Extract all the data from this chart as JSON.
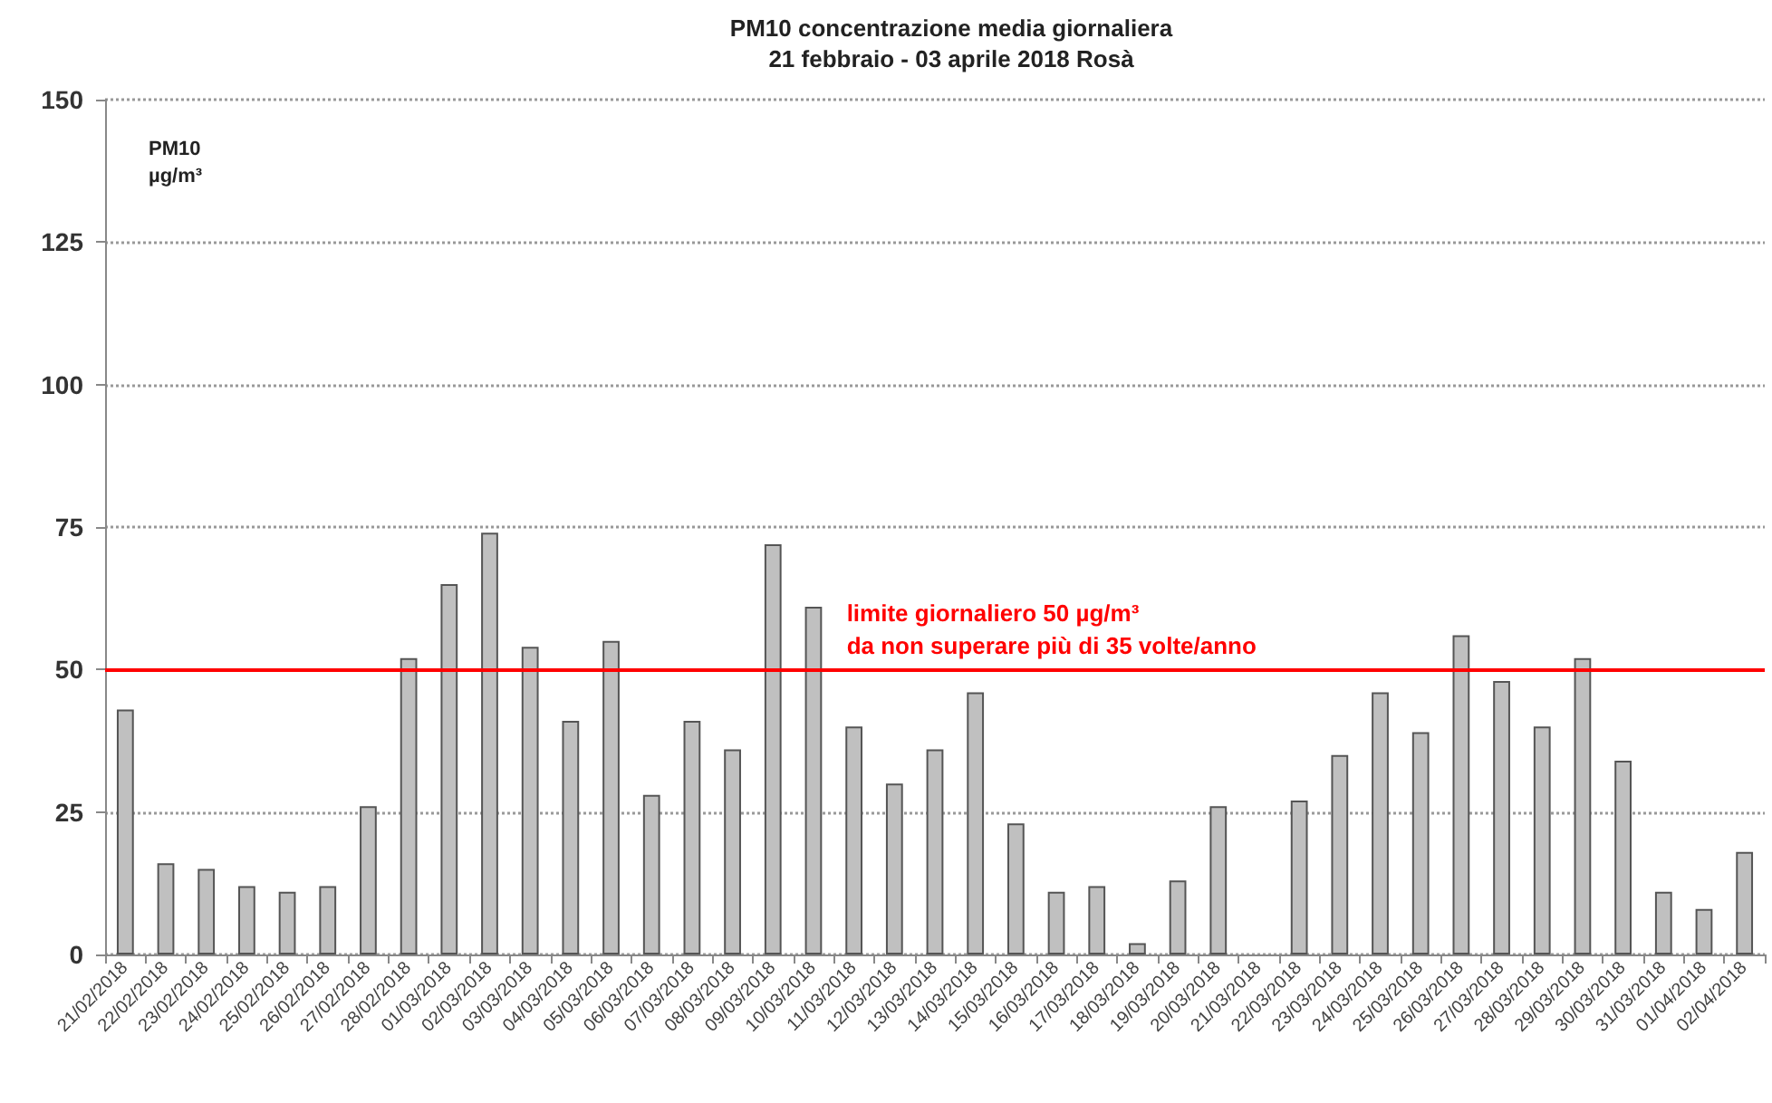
{
  "chart_data": {
    "type": "bar",
    "title": "PM10 concentrazione media giornaliera\n21 febbraio - 03 aprile 2018 Rosà",
    "ylabel": "PM10\nµg/m³",
    "categories": [
      "21/02/2018",
      "22/02/2018",
      "23/02/2018",
      "24/02/2018",
      "25/02/2018",
      "26/02/2018",
      "27/02/2018",
      "28/02/2018",
      "01/03/2018",
      "02/03/2018",
      "03/03/2018",
      "04/03/2018",
      "05/03/2018",
      "06/03/2018",
      "07/03/2018",
      "08/03/2018",
      "09/03/2018",
      "10/03/2018",
      "11/03/2018",
      "12/03/2018",
      "13/03/2018",
      "14/03/2018",
      "15/03/2018",
      "16/03/2018",
      "17/03/2018",
      "18/03/2018",
      "19/03/2018",
      "20/03/2018",
      "21/03/2018",
      "22/03/2018",
      "23/03/2018",
      "24/03/2018",
      "25/03/2018",
      "26/03/2018",
      "27/03/2018",
      "28/03/2018",
      "29/03/2018",
      "30/03/2018",
      "31/03/2018",
      "01/04/2018",
      "02/04/2018"
    ],
    "values": [
      43,
      16,
      15,
      12,
      11,
      12,
      26,
      52,
      65,
      74,
      54,
      41,
      55,
      28,
      41,
      36,
      72,
      61,
      40,
      30,
      36,
      46,
      23,
      11,
      12,
      2,
      13,
      26,
      null,
      27,
      35,
      46,
      39,
      56,
      48,
      40,
      52,
      34,
      11,
      8,
      18
    ],
    "color": "#c0c0c0",
    "ylim": [
      0,
      150
    ],
    "yticks": [
      0,
      25,
      50,
      75,
      100,
      125,
      150
    ],
    "grid": "y",
    "ref_lines": [
      {
        "axis": "y",
        "value": 50,
        "label": "limite giornaliero 50 µg/m³\nda non superare più di 35 volte/anno",
        "color": "#ff0000"
      }
    ]
  }
}
